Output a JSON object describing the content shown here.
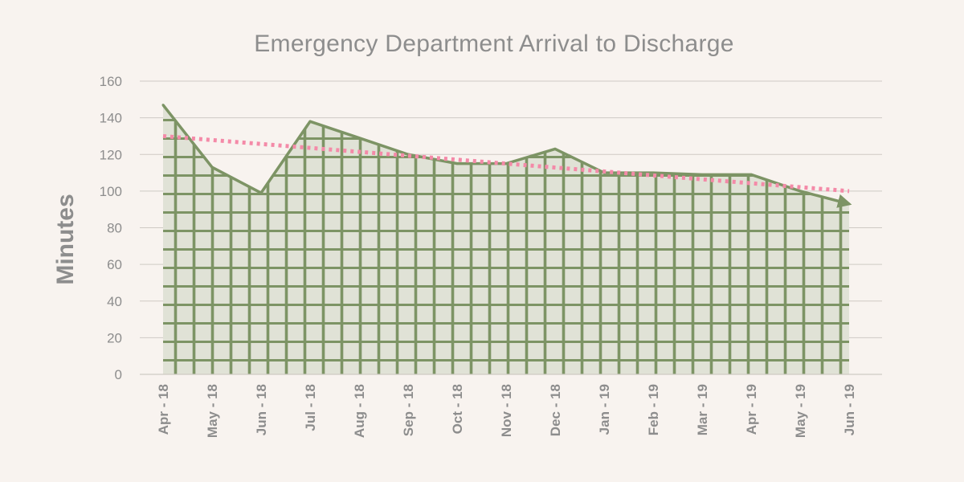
{
  "chart_data": {
    "type": "area",
    "title": "Emergency Department Arrival to Discharge",
    "ylabel": "Minutes",
    "xlabel": "",
    "ylim": [
      0,
      160
    ],
    "yticks": [
      0,
      20,
      40,
      60,
      80,
      100,
      120,
      140,
      160
    ],
    "categories": [
      "Apr - 18",
      "May - 18",
      "Jun - 18",
      "Jul - 18",
      "Aug - 18",
      "Sep - 18",
      "Oct - 18",
      "Nov - 18",
      "Dec - 18",
      "Jan - 19",
      "Feb - 19",
      "Mar - 19",
      "Apr - 19",
      "May - 19",
      "Jun - 19"
    ],
    "series": [
      {
        "values": [
          147,
          113,
          99,
          138,
          129,
          120,
          115,
          115,
          123,
          110,
          110,
          109,
          109,
          100,
          93
        ],
        "color": "#7d9465",
        "fill": "#e0e2d6"
      }
    ],
    "trendline": {
      "start": 130,
      "end": 100,
      "color": "#f48aa8",
      "style": "dotted"
    },
    "grid": true,
    "legend": "none"
  }
}
